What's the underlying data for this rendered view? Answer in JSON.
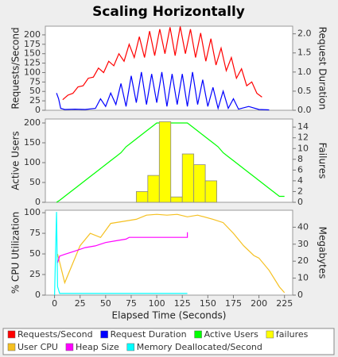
{
  "chart_data": [
    {
      "type": "combo",
      "title": "Scaling Horizontally",
      "ylabel": "Requests/Second",
      "y2label": "Request Duration",
      "xlim": [
        -9,
        233
      ],
      "ylim": [
        0,
        223
      ],
      "yticks": [
        0,
        25,
        50,
        75,
        100,
        125,
        150,
        175,
        200
      ],
      "y2lim": [
        0,
        2.2
      ],
      "y2ticks": [
        {
          "value": 0,
          "label": "0.0"
        },
        0.5,
        {
          "value": 1,
          "label": "1.0"
        },
        1.5,
        {
          "value": 2,
          "label": "2.0"
        }
      ],
      "grid": false,
      "series": [
        {
          "name": "Requests/Second",
          "type": "line",
          "color": "#ff0000",
          "x": [
            8,
            13,
            18,
            23,
            28,
            33,
            38,
            43,
            48,
            53,
            58,
            63,
            68,
            73,
            78,
            83,
            88,
            93,
            98,
            103,
            108,
            113,
            118,
            123,
            128,
            133,
            138,
            143,
            148,
            153,
            158,
            163,
            168,
            173,
            178,
            183,
            188,
            193,
            198,
            203
          ],
          "values": [
            28,
            40,
            45,
            62,
            65,
            85,
            88,
            112,
            100,
            130,
            118,
            150,
            130,
            175,
            140,
            195,
            140,
            210,
            145,
            215,
            150,
            220,
            145,
            222,
            150,
            215,
            140,
            205,
            130,
            190,
            120,
            165,
            105,
            140,
            85,
            110,
            65,
            75,
            45,
            35
          ]
        },
        {
          "name": "Request Duration",
          "type": "line",
          "color": "#0000ff",
          "axis": "y2",
          "x": [
            2,
            4,
            6,
            10,
            20,
            30,
            40,
            45,
            50,
            55,
            60,
            65,
            70,
            75,
            80,
            85,
            90,
            95,
            100,
            105,
            110,
            115,
            120,
            125,
            130,
            135,
            140,
            145,
            150,
            155,
            160,
            165,
            170,
            175,
            180,
            190,
            200,
            210
          ],
          "values": [
            0.45,
            0.3,
            0.05,
            0.02,
            0.03,
            0.02,
            0.05,
            0.3,
            0.1,
            0.45,
            0.15,
            0.7,
            0.1,
            0.9,
            0.2,
            1.0,
            0.15,
            0.95,
            0.2,
            1.0,
            0.1,
            0.95,
            0.15,
            0.95,
            0.1,
            1.0,
            0.15,
            0.8,
            0.1,
            0.6,
            0.05,
            0.5,
            0.05,
            0.3,
            0.03,
            0.1,
            0.02,
            0.01
          ]
        }
      ]
    },
    {
      "type": "combo",
      "ylabel": "Active Users",
      "y2label": "Failures",
      "xlim": [
        -9,
        233
      ],
      "ylim": [
        0,
        210
      ],
      "yticks": [
        0,
        50,
        100,
        150,
        200
      ],
      "y2lim": [
        0,
        15.5
      ],
      "y2ticks": [
        0,
        2,
        4,
        6,
        8,
        10,
        12,
        14
      ],
      "grid": false,
      "series": [
        {
          "name": "Active Users",
          "type": "line",
          "color": "#00ff00",
          "x": [
            2,
            5,
            10,
            15,
            20,
            25,
            30,
            35,
            40,
            45,
            50,
            55,
            60,
            65,
            70,
            75,
            80,
            85,
            90,
            95,
            100,
            130,
            135,
            140,
            145,
            150,
            155,
            160,
            165,
            170,
            175,
            180,
            185,
            190,
            195,
            200,
            205,
            210,
            215,
            220,
            225
          ],
          "values": [
            0,
            5,
            15,
            25,
            35,
            45,
            55,
            65,
            75,
            85,
            95,
            105,
            115,
            125,
            140,
            150,
            160,
            170,
            180,
            190,
            200,
            200,
            190,
            180,
            170,
            160,
            150,
            140,
            125,
            115,
            105,
            95,
            85,
            75,
            65,
            55,
            45,
            35,
            25,
            15,
            15
          ]
        },
        {
          "name": "failures",
          "type": "histogram",
          "color": "#ffff00",
          "axis": "y2",
          "bins": [
            80,
            91.25,
            102.5,
            113.75,
            125,
            136.25,
            147.5,
            158.75
          ],
          "values": [
            2,
            5,
            15,
            1,
            9,
            7,
            4
          ]
        }
      ]
    },
    {
      "type": "combo",
      "ylabel": "% CPU Utilization",
      "y2label": "Megabytes",
      "xlabel": "Elapsed Time (Seconds)",
      "xlim": [
        -9,
        233
      ],
      "xticks": [
        0,
        25,
        50,
        75,
        100,
        125,
        150,
        175,
        200,
        225
      ],
      "ylim": [
        0,
        103
      ],
      "yticks": [
        0,
        25,
        50,
        75,
        100
      ],
      "y2lim": [
        0,
        50
      ],
      "y2ticks": [
        0,
        10,
        20,
        30,
        40
      ],
      "grid": false,
      "series": [
        {
          "name": "User CPU",
          "type": "line",
          "color": "#f5c020",
          "x": [
            3,
            10,
            25,
            35,
            45,
            55,
            70,
            80,
            90,
            100,
            110,
            120,
            130,
            140,
            155,
            165,
            175,
            185,
            195,
            200,
            210,
            220,
            225
          ],
          "values": [
            50,
            15,
            60,
            75,
            70,
            87,
            90,
            92,
            97,
            98,
            97,
            98,
            95,
            97,
            92,
            88,
            75,
            60,
            48,
            45,
            30,
            10,
            3
          ]
        },
        {
          "name": "Heap Size",
          "type": "line",
          "color": "#ff00ff",
          "axis": "y2",
          "x": [
            3,
            5,
            10,
            20,
            30,
            40,
            50,
            60,
            70,
            73,
            130,
            130
          ],
          "values": [
            19,
            23,
            24,
            26,
            28,
            29,
            31,
            32,
            33,
            34,
            34,
            37
          ]
        },
        {
          "name": "Memory Deallocated/Second",
          "type": "line",
          "color": "#00ffff",
          "axis": "y2",
          "x": [
            0,
            2,
            3,
            5,
            130
          ],
          "values": [
            0,
            49,
            5,
            1,
            1
          ]
        }
      ]
    }
  ]
}
